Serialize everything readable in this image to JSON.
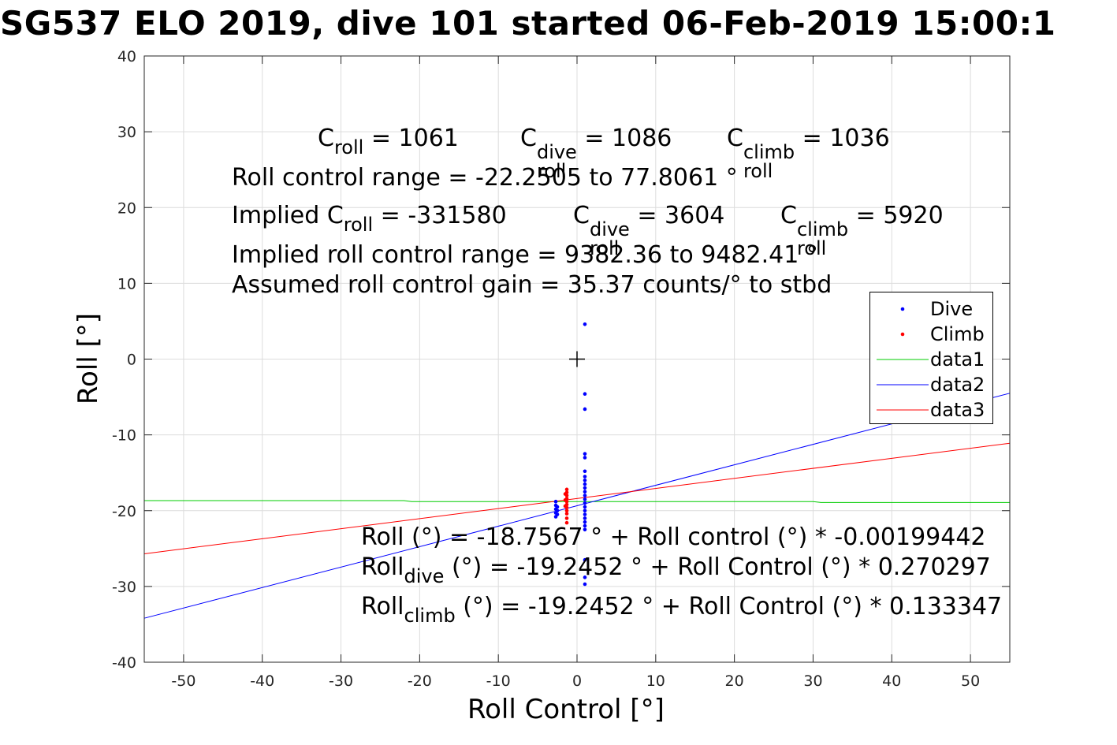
{
  "title": "SG537 ELO 2019, dive 101 started 06-Feb-2019 15:00:1",
  "annotations": {
    "c_roll": "C",
    "c_roll_sub": "roll",
    "c_roll_value": " = 1061",
    "c_dive": "C",
    "c_dive_sup": "dive",
    "c_dive_sub": "roll",
    "c_dive_value": " = 1086",
    "c_climb": "C",
    "c_climb_sup": "climb",
    "c_climb_sub": "roll",
    "c_climb_value": " = 1036",
    "roll_control_range": "Roll control range = -22.2505 to 77.8061 °",
    "implied_prefix": "Implied C",
    "implied_sub": "roll",
    "implied_value": " = -331580",
    "implied_dive_c": "C",
    "implied_dive_sup": "dive",
    "implied_dive_sub": "roll",
    "implied_dive_value": " = 3604",
    "implied_climb_c": "C",
    "implied_climb_sup": "climb",
    "implied_climb_sub": "roll",
    "implied_climb_value": " = 5920",
    "implied_range": "Implied roll control range = 9382.36 to 9482.41 °",
    "gain": "Assumed roll control gain = 35.37 counts/° to stbd",
    "fit_all": "Roll (°) = -18.7567 ° + Roll control (°) * -0.00199442",
    "fit_dive_prefix": "Roll",
    "fit_dive_sub": "dive",
    "fit_dive_rest": " (°) = -19.2452 ° + Roll Control (°) * 0.270297",
    "fit_climb_prefix": "Roll",
    "fit_climb_sub": "climb",
    "fit_climb_rest": " (°) = -19.2452 ° + Roll Control (°) * 0.133347"
  },
  "chart_data": {
    "type": "scatter",
    "xlabel": "Roll Control [°]",
    "ylabel": "Roll [°]",
    "xlim": [
      -55,
      55
    ],
    "ylim": [
      -40,
      40
    ],
    "xticks": [
      -50,
      -40,
      -30,
      -20,
      -10,
      0,
      10,
      20,
      30,
      40,
      50
    ],
    "yticks": [
      -40,
      -30,
      -20,
      -10,
      0,
      10,
      20,
      30,
      40
    ],
    "grid": true,
    "legend_position": "right",
    "center_marker": {
      "x": 0,
      "y": 0,
      "symbol": "+"
    },
    "series": [
      {
        "name": "Dive",
        "kind": "points",
        "color": "#0000ff",
        "points": [
          [
            1.0,
            4.6
          ],
          [
            1.0,
            -4.6
          ],
          [
            1.0,
            -6.6
          ],
          [
            1.0,
            -12.5
          ],
          [
            1.0,
            -13.0
          ],
          [
            1.0,
            -14.8
          ],
          [
            1.0,
            -15.5
          ],
          [
            1.0,
            -16.0
          ],
          [
            1.0,
            -16.5
          ],
          [
            1.0,
            -17.0
          ],
          [
            1.0,
            -17.5
          ],
          [
            1.0,
            -18.0
          ],
          [
            1.0,
            -18.5
          ],
          [
            1.0,
            -19.0
          ],
          [
            1.0,
            -19.5
          ],
          [
            1.0,
            -20.0
          ],
          [
            1.0,
            -20.5
          ],
          [
            1.0,
            -21.0
          ],
          [
            1.0,
            -21.5
          ],
          [
            1.0,
            -22.0
          ],
          [
            1.0,
            -22.5
          ],
          [
            1.0,
            -26.5
          ],
          [
            1.0,
            -28.8
          ],
          [
            1.0,
            -29.7
          ],
          [
            -2.7,
            -18.8
          ],
          [
            -2.7,
            -19.3
          ],
          [
            -2.7,
            -19.8
          ],
          [
            -2.7,
            -20.3
          ],
          [
            -2.7,
            -20.8
          ],
          [
            -2.5,
            -19.5
          ],
          [
            -2.5,
            -20.0
          ],
          [
            -2.5,
            -20.5
          ]
        ]
      },
      {
        "name": "Climb",
        "kind": "points",
        "color": "#ff0000",
        "points": [
          [
            -1.3,
            -17.2
          ],
          [
            -1.3,
            -17.6
          ],
          [
            -1.3,
            -18.0
          ],
          [
            -1.3,
            -18.4
          ],
          [
            -1.3,
            -18.8
          ],
          [
            -1.3,
            -19.2
          ],
          [
            -1.3,
            -19.6
          ],
          [
            -1.3,
            -20.0
          ],
          [
            -1.3,
            -20.4
          ],
          [
            -1.3,
            -21.0
          ],
          [
            -1.3,
            -21.6
          ],
          [
            -1.5,
            -17.8
          ],
          [
            -1.5,
            -18.6
          ],
          [
            -1.5,
            -19.4
          ]
        ]
      },
      {
        "name": "data1",
        "kind": "line",
        "color": "#00cc00",
        "points": [
          [
            -55,
            -18.67
          ],
          [
            -22,
            -18.67
          ],
          [
            -21,
            -18.8
          ],
          [
            30,
            -18.8
          ],
          [
            31,
            -18.92
          ],
          [
            55,
            -18.92
          ]
        ]
      },
      {
        "name": "data2",
        "kind": "line",
        "color": "#0000ff",
        "points": [
          [
            -55,
            -34.2
          ],
          [
            55,
            -4.5
          ]
        ]
      },
      {
        "name": "data3",
        "kind": "line",
        "color": "#ff0000",
        "points": [
          [
            -55,
            -25.7
          ],
          [
            55,
            -11.1
          ]
        ]
      }
    ]
  }
}
